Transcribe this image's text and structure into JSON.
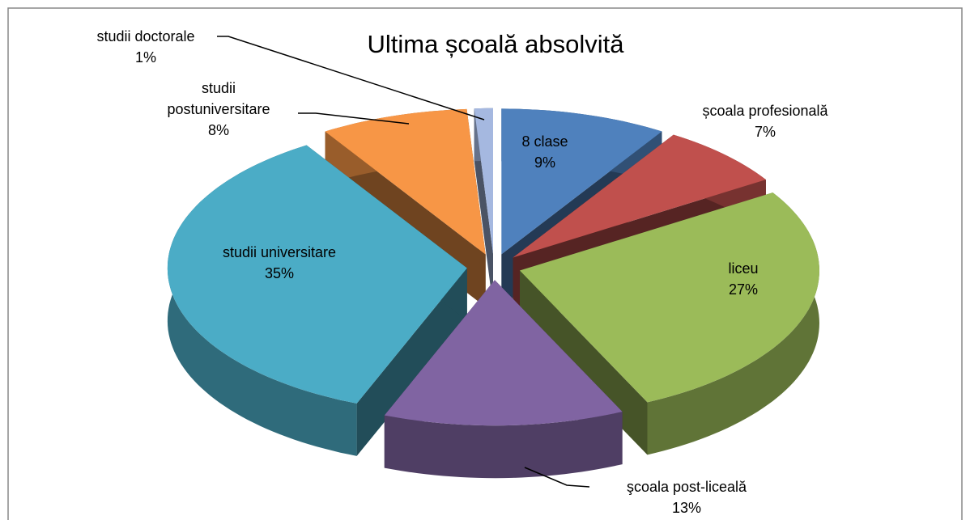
{
  "chart_data": {
    "type": "pie3d",
    "title": "Ultima școală absolvită",
    "categories": [
      "8 clase",
      "școala profesională",
      "liceu",
      "şcoala post-liceală",
      "studii universitare",
      "studii postuniversitare",
      "studii doctorale"
    ],
    "values": [
      9,
      7,
      27,
      13,
      35,
      8,
      1
    ],
    "value_labels": [
      "9%",
      "7%",
      "27%",
      "13%",
      "35%",
      "8%",
      "1%"
    ],
    "colors": [
      "#4f81bd",
      "#c0504d",
      "#9bbb59",
      "#8064a2",
      "#4bacc6",
      "#f79646",
      "#a5b8e0"
    ]
  }
}
